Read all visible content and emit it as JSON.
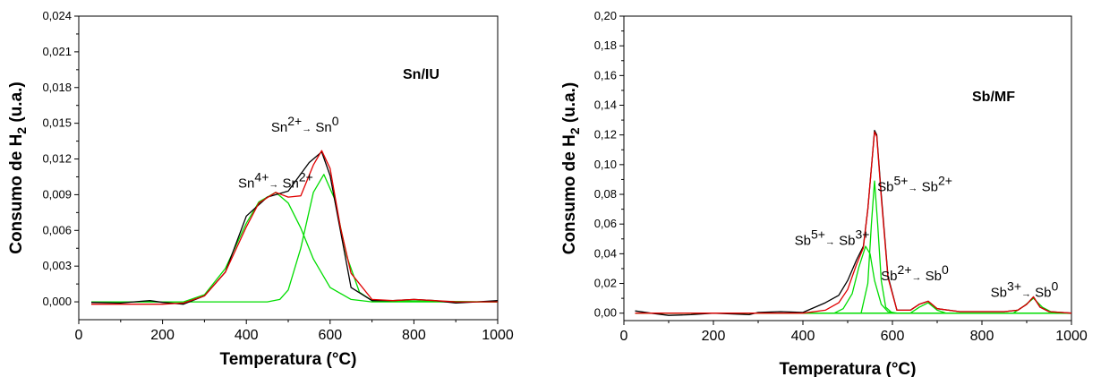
{
  "chart_data": [
    {
      "type": "line",
      "panel_label": "Sn/IU",
      "xlabel": "Temperatura (°C)",
      "ylabel_parts": {
        "main": "Consumo de H",
        "sub": "2",
        "unit": " (u.a.)"
      },
      "xlim": [
        0,
        1000
      ],
      "ylim": [
        -0.0015,
        0.024
      ],
      "xticks": [
        0,
        200,
        400,
        600,
        800,
        1000
      ],
      "xtick_labels": [
        "0",
        "200",
        "400",
        "600",
        "800",
        "1000"
      ],
      "yticks": [
        0.0,
        0.003,
        0.006,
        0.009,
        0.012,
        0.015,
        0.018,
        0.021,
        0.024
      ],
      "ytick_labels": [
        "0,000",
        "0,003",
        "0,006",
        "0,009",
        "0,012",
        "0,015",
        "0,018",
        "0,021",
        "0,024"
      ],
      "grid": false,
      "colors": {
        "black": "#000000",
        "red": "#e00000",
        "green": "#00dd00"
      },
      "annotations": [
        {
          "x": 470,
          "y": 0.0096,
          "from_ion": "Sn",
          "from_charge": "4+",
          "to_ion": "Sn",
          "to_charge": "2+"
        },
        {
          "x": 540,
          "y": 0.0143,
          "from_ion": "Sn",
          "from_charge": "2+",
          "to_ion": "Sn",
          "to_charge": "0"
        }
      ],
      "series": [
        {
          "style": "black",
          "x": [
            30,
            100,
            150,
            170,
            200,
            250,
            300,
            350,
            400,
            450,
            500,
            550,
            580,
            600,
            650,
            700,
            750,
            800,
            850,
            900,
            950,
            1000
          ],
          "y": [
            -5e-05,
            -0.0001,
            5e-05,
            0.0001,
            -5e-05,
            -0.0002,
            0.0005,
            0.0025,
            0.0072,
            0.0088,
            0.0093,
            0.0117,
            0.0126,
            0.0106,
            0.0012,
            0.0001,
            0.0001,
            0.0002,
            0.0001,
            -0.0001,
            0.0,
            0.0001
          ]
        },
        {
          "style": "red",
          "x": [
            30,
            100,
            200,
            250,
            300,
            350,
            400,
            430,
            470,
            500,
            530,
            560,
            580,
            600,
            625,
            650,
            700,
            750,
            800,
            850,
            900,
            950,
            1000
          ],
          "y": [
            -0.0002,
            -0.0002,
            -0.0002,
            -0.0001,
            0.0005,
            0.0025,
            0.0063,
            0.0083,
            0.0092,
            0.0088,
            0.0089,
            0.0115,
            0.0127,
            0.0112,
            0.0062,
            0.0024,
            0.0002,
            0.0001,
            0.0002,
            0.0001,
            0.0,
            0.0,
            0.0
          ]
        },
        {
          "style": "green",
          "x": [
            30,
            250,
            300,
            350,
            400,
            430,
            470,
            500,
            530,
            560,
            600,
            650,
            700,
            1000
          ],
          "y": [
            0.0,
            0.0,
            0.0006,
            0.0028,
            0.0066,
            0.0084,
            0.0092,
            0.0083,
            0.0062,
            0.0036,
            0.0012,
            0.0002,
            0.0,
            0.0
          ]
        },
        {
          "style": "green",
          "x": [
            30,
            450,
            480,
            500,
            530,
            560,
            585,
            610,
            640,
            670,
            700,
            1000
          ],
          "y": [
            0.0,
            0.0,
            0.0002,
            0.001,
            0.0045,
            0.0092,
            0.0107,
            0.0087,
            0.0038,
            0.0008,
            0.0001,
            0.0
          ]
        }
      ]
    },
    {
      "type": "line",
      "panel_label": "Sb/MF",
      "xlabel": "Temperatura (°C)",
      "ylabel_parts": {
        "main": "Consumo de H",
        "sub": "2",
        "unit": " (u.a.)"
      },
      "xlim": [
        0,
        1000
      ],
      "ylim": [
        -0.005,
        0.2
      ],
      "xticks": [
        0,
        200,
        400,
        600,
        800,
        1000
      ],
      "xtick_labels": [
        "0",
        "200",
        "400",
        "600",
        "800",
        "1000"
      ],
      "yticks": [
        0.0,
        0.02,
        0.04,
        0.06,
        0.08,
        0.1,
        0.12,
        0.14,
        0.16,
        0.18,
        0.2
      ],
      "ytick_labels": [
        "0,00",
        "0,02",
        "0,04",
        "0,06",
        "0,08",
        "0,10",
        "0,12",
        "0,14",
        "0,16",
        "0,18",
        "0,20"
      ],
      "grid": false,
      "colors": {
        "black": "#000000",
        "red": "#e00000",
        "green": "#00dd00"
      },
      "annotations": [
        {
          "x": 465,
          "y": 0.046,
          "from_ion": "Sb",
          "from_charge": "5+",
          "to_ion": "Sb",
          "to_charge": "3+"
        },
        {
          "x": 650,
          "y": 0.082,
          "from_ion": "Sb",
          "from_charge": "5+",
          "to_ion": "Sb",
          "to_charge": "2+"
        },
        {
          "x": 650,
          "y": 0.022,
          "from_ion": "Sb",
          "from_charge": "2+",
          "to_ion": "Sb",
          "to_charge": "0"
        },
        {
          "x": 895,
          "y": 0.011,
          "from_ion": "Sb",
          "from_charge": "3+",
          "to_ion": "Sb",
          "to_charge": "0"
        }
      ],
      "series": [
        {
          "style": "black",
          "x": [
            25,
            60,
            100,
            150,
            200,
            280,
            300,
            350,
            400,
            450,
            480,
            500,
            520,
            535,
            545,
            555,
            560,
            565,
            575,
            590,
            610,
            640,
            660,
            680,
            700,
            750,
            850,
            880,
            900,
            915,
            930,
            950,
            1000
          ],
          "y": [
            0.0015,
            0.0,
            -0.0015,
            -0.001,
            0.0,
            -0.001,
            0.0005,
            0.001,
            0.0005,
            0.007,
            0.012,
            0.022,
            0.036,
            0.045,
            0.07,
            0.105,
            0.123,
            0.12,
            0.08,
            0.025,
            0.002,
            0.002,
            0.006,
            0.008,
            0.003,
            0.001,
            0.001,
            0.002,
            0.006,
            0.011,
            0.004,
            0.001,
            0.0
          ]
        },
        {
          "style": "red",
          "x": [
            25,
            400,
            450,
            480,
            500,
            520,
            535,
            545,
            555,
            560,
            565,
            575,
            590,
            610,
            640,
            660,
            680,
            700,
            750,
            850,
            880,
            900,
            915,
            930,
            950,
            1000
          ],
          "y": [
            0.0,
            0.0,
            0.002,
            0.007,
            0.016,
            0.033,
            0.044,
            0.07,
            0.105,
            0.122,
            0.119,
            0.078,
            0.024,
            0.002,
            0.002,
            0.006,
            0.008,
            0.003,
            0.001,
            0.001,
            0.002,
            0.006,
            0.011,
            0.004,
            0.001,
            0.0
          ]
        },
        {
          "style": "green",
          "x": [
            25,
            470,
            490,
            510,
            525,
            540,
            550,
            560,
            575,
            590,
            610,
            1000
          ],
          "y": [
            0.0,
            0.0,
            0.003,
            0.013,
            0.031,
            0.045,
            0.04,
            0.022,
            0.006,
            0.001,
            0.0,
            0.0
          ]
        },
        {
          "style": "green",
          "x": [
            25,
            530,
            545,
            553,
            560,
            567,
            575,
            585,
            600,
            1000
          ],
          "y": [
            0.0,
            0.0,
            0.02,
            0.06,
            0.089,
            0.06,
            0.022,
            0.004,
            0.0,
            0.0
          ]
        },
        {
          "style": "green",
          "x": [
            25,
            640,
            660,
            680,
            700,
            720,
            1000
          ],
          "y": [
            0.0,
            0.0,
            0.004,
            0.007,
            0.002,
            0.0,
            0.0
          ]
        },
        {
          "style": "green",
          "x": [
            25,
            870,
            895,
            915,
            935,
            960,
            1000
          ],
          "y": [
            0.0,
            0.0,
            0.005,
            0.01,
            0.004,
            0.0,
            0.0
          ]
        }
      ]
    }
  ]
}
